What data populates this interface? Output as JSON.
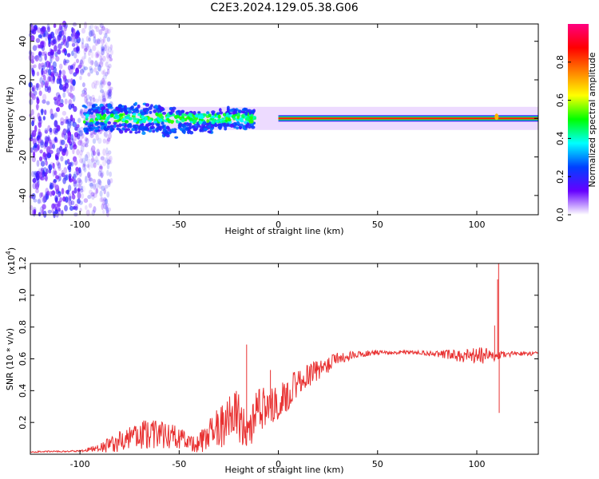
{
  "title": "C2E3.2024.129.05.38.G06",
  "chart_data": [
    {
      "type": "heatmap",
      "name": "spectrogram",
      "xlabel": "Height of straight line (km)",
      "ylabel": "Frequency (Hz)",
      "xlim": [
        -125,
        131
      ],
      "ylim": [
        -50,
        49
      ],
      "xticks": [
        -100,
        -50,
        0,
        50,
        100
      ],
      "yticks": [
        -40,
        -20,
        0,
        20,
        40
      ],
      "colorbar": {
        "label": "Normalized spectral amplitude",
        "range": [
          0,
          1
        ],
        "ticks": [
          0.0,
          0.2,
          0.4,
          0.6,
          0.8
        ],
        "colors": [
          "#ffffff",
          "#6600ff",
          "#0040ff",
          "#00ffff",
          "#00ff00",
          "#ffff00",
          "#ff8000",
          "#ff0000",
          "#ff0080"
        ]
      },
      "features": {
        "scattered_noise_region_km": [
          -125,
          -90
        ],
        "dispersed_signal_region_km": [
          -98,
          -12
        ],
        "steady_tone_region_km": [
          0,
          131
        ],
        "tone_frequency_hz": 0,
        "notch_at_km": 110
      }
    },
    {
      "type": "line",
      "name": "snr",
      "xlabel": "Height of straight line (km)",
      "ylabel": "SNR (10 * v/v)",
      "scale_label": "(x10",
      "scale_exp": "4",
      "color": "#e83030",
      "xlim": [
        -125,
        131
      ],
      "ylim": [
        0,
        12000
      ],
      "xticks": [
        -100,
        -50,
        0,
        50,
        100
      ],
      "yticks": [
        0.2,
        0.4,
        0.6,
        0.8,
        1.0,
        1.2
      ],
      "series": [
        {
          "baseline_x": [
            -125,
            -100,
            -90,
            -80,
            -70,
            -60,
            -50,
            -40,
            -30,
            -20,
            -15,
            -10,
            -5,
            0,
            5,
            10,
            20,
            30,
            40,
            50,
            60,
            70,
            80,
            90,
            100,
            105,
            109,
            111,
            113,
            120,
            131
          ],
          "baseline_y": [
            150,
            200,
            400,
            800,
            1200,
            1300,
            1000,
            700,
            1600,
            2400,
            1100,
            3000,
            2800,
            3200,
            3800,
            4500,
            5300,
            6000,
            6300,
            6400,
            6400,
            6400,
            6300,
            6200,
            6200,
            6200,
            6100,
            6200,
            6300,
            6300,
            6300
          ],
          "noise_amp": [
            50,
            50,
            300,
            700,
            900,
            900,
            700,
            600,
            1400,
            1800,
            1000,
            1500,
            1300,
            1200,
            1000,
            900,
            700,
            400,
            200,
            150,
            120,
            120,
            200,
            400,
            500,
            600,
            300,
            300,
            200,
            150,
            150
          ],
          "spikes": [
            {
              "x": -16,
              "y": 6900
            },
            {
              "x": -4,
              "y": 5300
            },
            {
              "x": 109,
              "y": 8100
            },
            {
              "x": 110.5,
              "y": 11000
            },
            {
              "x": 111,
              "y": 12000
            },
            {
              "x": 111.3,
              "y": 2600
            }
          ]
        }
      ]
    }
  ]
}
